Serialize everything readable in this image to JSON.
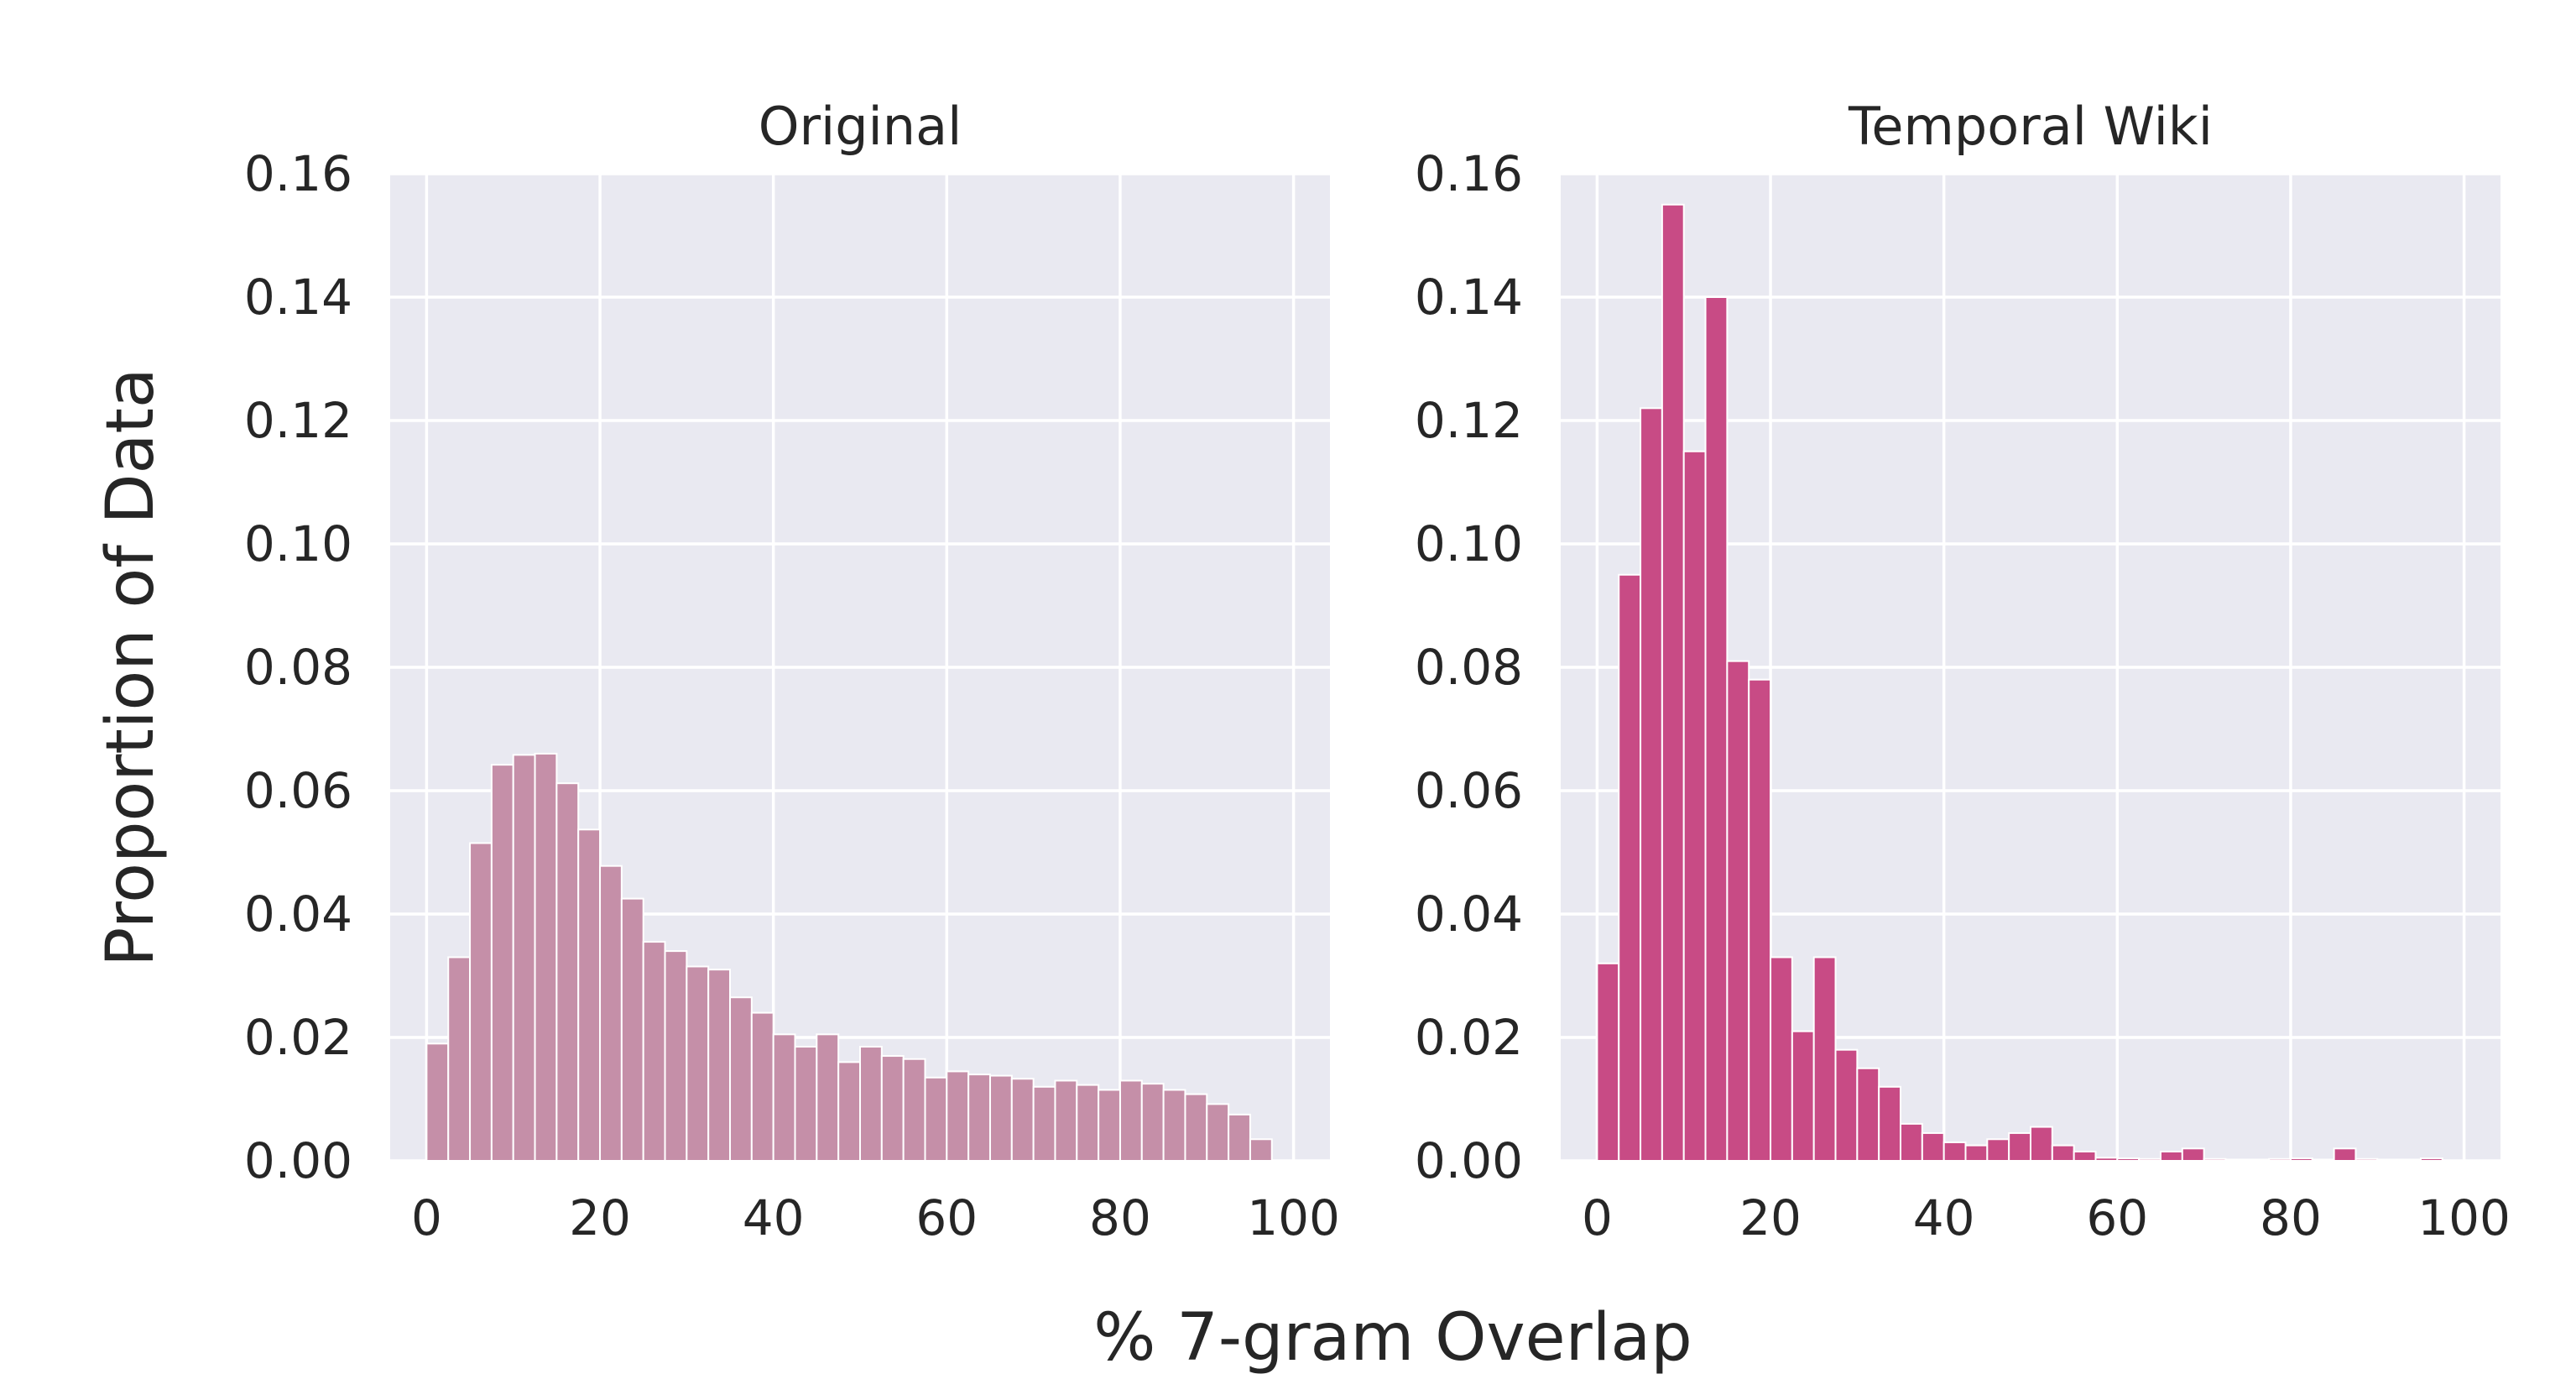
{
  "figure": {
    "ylabel": "Proportion of Data",
    "xlabel": "% 7-gram Overlap"
  },
  "chart_data": [
    {
      "type": "bar",
      "title": "Original",
      "xlim": [
        -4.2,
        104.2
      ],
      "ylim": [
        0,
        0.16
      ],
      "xticks": [
        0,
        20,
        40,
        60,
        80,
        100
      ],
      "yticks": [
        0.0,
        0.02,
        0.04,
        0.06,
        0.08,
        0.1,
        0.12,
        0.14,
        0.16
      ],
      "grid": true,
      "bin_width": 2.5,
      "color": "#c58fa8",
      "x": [
        0,
        2.5,
        5,
        7.5,
        10,
        12.5,
        15,
        17.5,
        20,
        22.5,
        25,
        27.5,
        30,
        32.5,
        35,
        37.5,
        40,
        42.5,
        45,
        47.5,
        50,
        52.5,
        55,
        57.5,
        60,
        62.5,
        65,
        67.5,
        70,
        72.5,
        75,
        77.5,
        80,
        82.5,
        85,
        87.5,
        90,
        92.5,
        95
      ],
      "values": [
        0.019,
        0.033,
        0.0515,
        0.0642,
        0.0658,
        0.066,
        0.0612,
        0.0537,
        0.0478,
        0.0425,
        0.0355,
        0.034,
        0.0315,
        0.031,
        0.0265,
        0.024,
        0.0205,
        0.0185,
        0.0205,
        0.016,
        0.0185,
        0.017,
        0.0165,
        0.0135,
        0.0145,
        0.014,
        0.0138,
        0.0133,
        0.012,
        0.013,
        0.0123,
        0.0115,
        0.013,
        0.0125,
        0.0115,
        0.0108,
        0.0092,
        0.0075,
        0.0035
      ]
    },
    {
      "type": "bar",
      "title": "Temporal Wiki",
      "xlim": [
        -4.2,
        104.2
      ],
      "ylim": [
        0,
        0.16
      ],
      "xticks": [
        0,
        20,
        40,
        60,
        80,
        100
      ],
      "yticks": [
        0.0,
        0.02,
        0.04,
        0.06,
        0.08,
        0.1,
        0.12,
        0.14,
        0.16
      ],
      "grid": true,
      "bin_width": 2.5,
      "color": "#c84b85",
      "x": [
        0,
        2.5,
        5,
        7.5,
        10,
        12.5,
        15,
        17.5,
        20,
        22.5,
        25,
        27.5,
        30,
        32.5,
        35,
        37.5,
        40,
        42.5,
        45,
        47.5,
        50,
        52.5,
        55,
        57.5,
        60,
        62.5,
        65,
        67.5,
        70,
        72.5,
        75,
        77.5,
        80,
        82.5,
        85,
        87.5,
        90,
        92.5,
        95
      ],
      "values": [
        0.032,
        0.095,
        0.122,
        0.155,
        0.115,
        0.14,
        0.081,
        0.078,
        0.033,
        0.021,
        0.033,
        0.018,
        0.015,
        0.012,
        0.006,
        0.0045,
        0.003,
        0.0025,
        0.0035,
        0.0045,
        0.0055,
        0.0025,
        0.0015,
        0.0005,
        0.0004,
        0.0003,
        0.0015,
        0.002,
        0.0003,
        0.0002,
        0.0002,
        0.0003,
        0.0004,
        0.0002,
        0.002,
        0.0003,
        0.0002,
        0.0002,
        0.0004
      ]
    }
  ]
}
